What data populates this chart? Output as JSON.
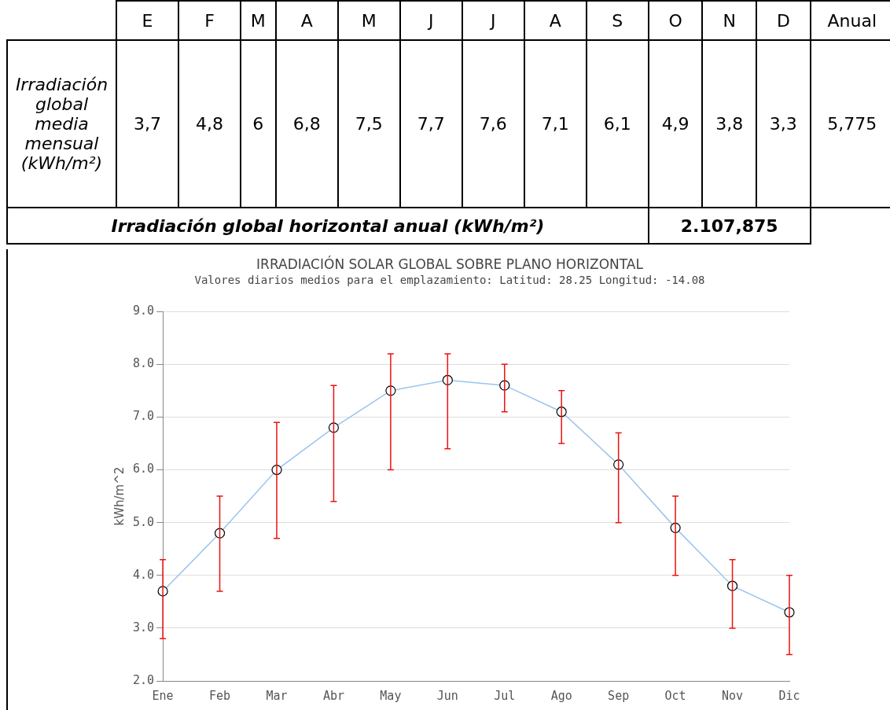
{
  "chart_data": {
    "type": "line",
    "title": "IRRADIACIÓN SOLAR GLOBAL SOBRE PLANO HORIZONTAL",
    "subtitle": "Valores diarios medios para el emplazamiento: Latitud: 28.25 Longitud: -14.08",
    "ylabel": "kWh/m^2",
    "categories": [
      "Ene",
      "Feb",
      "Mar",
      "Abr",
      "May",
      "Jun",
      "Jul",
      "Ago",
      "Sep",
      "Oct",
      "Nov",
      "Dic"
    ],
    "series": [
      {
        "color": "#99c4ee",
        "values": [
          3.7,
          4.8,
          6.0,
          6.8,
          7.5,
          7.7,
          7.6,
          7.1,
          6.1,
          4.9,
          3.8,
          3.3
        ],
        "errors": [
          [
            2.8,
            4.3
          ],
          [
            3.7,
            5.5
          ],
          [
            4.7,
            6.9
          ],
          [
            5.4,
            7.6
          ],
          [
            6.0,
            8.2
          ],
          [
            6.4,
            8.2
          ],
          [
            7.1,
            8.0
          ],
          [
            6.5,
            7.5
          ],
          [
            5.0,
            6.7
          ],
          [
            4.0,
            5.5
          ],
          [
            3.0,
            4.3
          ],
          [
            2.5,
            4.0
          ]
        ],
        "value_labels": [
          "3,7",
          "4,8",
          "6",
          "6,8",
          "7,5",
          "7,7",
          "7,6",
          "7,1",
          "6,1",
          "4,9",
          "3,8",
          "3,3"
        ]
      }
    ],
    "ylim": [
      2,
      9
    ],
    "yticks": [
      {
        "value": 2,
        "label": "2.0"
      },
      {
        "value": 3,
        "label": "3.0"
      },
      {
        "value": 4,
        "label": "4.0"
      },
      {
        "value": 5,
        "label": "5.0"
      },
      {
        "value": 6,
        "label": "6.0"
      },
      {
        "value": 7,
        "label": "7.0"
      },
      {
        "value": 8,
        "label": "8.0"
      },
      {
        "value": 9,
        "label": "9.0"
      }
    ],
    "grid": "y",
    "legend": false,
    "marker": "circle",
    "annotations": [
      "E",
      "F",
      "M",
      "A",
      "M",
      "J",
      "J",
      "A",
      "S",
      "O",
      "N",
      "D",
      "Anual",
      "Irradiación global media mensual (kWh/m²)",
      "5,775",
      "Irradiación global horizontal anual (kWh/m²)",
      "2.107,875"
    ]
  }
}
